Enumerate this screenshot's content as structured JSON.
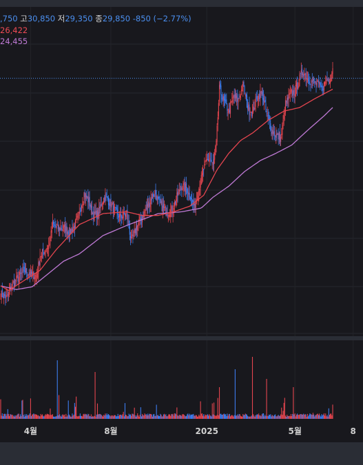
{
  "chart_data": {
    "type": "candlestick",
    "ohlc": {
      "open_fragment": ",750",
      "high_label": "고",
      "high": "30,850",
      "low_label": "저",
      "low": "29,350",
      "close_label": "종",
      "close": "29,850",
      "change": "-850",
      "change_pct": "(−2.77%)"
    },
    "ma_short_fragment": "26,422",
    "ma_long_fragment": "24,455",
    "x_ticks": [
      {
        "label": "4월",
        "bar": 38
      },
      {
        "label": "8월",
        "bar": 140
      },
      {
        "label": "2025",
        "bar": 262
      },
      {
        "label": "5월",
        "bar": 374
      },
      {
        "label": "8",
        "bar": 448
      }
    ],
    "ylim": [
      17500,
      35500
    ],
    "last_price_line": 31600,
    "close_path": [
      [
        0,
        19800
      ],
      [
        8,
        19600
      ],
      [
        14,
        20300
      ],
      [
        22,
        20700
      ],
      [
        30,
        21100
      ],
      [
        38,
        20900
      ],
      [
        46,
        20800
      ],
      [
        50,
        21900
      ],
      [
        56,
        22200
      ],
      [
        62,
        22500
      ],
      [
        66,
        23600
      ],
      [
        72,
        23400
      ],
      [
        80,
        23400
      ],
      [
        88,
        23200
      ],
      [
        94,
        23500
      ],
      [
        100,
        24200
      ],
      [
        106,
        25300
      ],
      [
        112,
        24900
      ],
      [
        118,
        24100
      ],
      [
        124,
        24200
      ],
      [
        130,
        25000
      ],
      [
        134,
        25100
      ],
      [
        140,
        24700
      ],
      [
        146,
        24300
      ],
      [
        152,
        24000
      ],
      [
        160,
        24200
      ],
      [
        166,
        22700
      ],
      [
        172,
        23400
      ],
      [
        178,
        23900
      ],
      [
        184,
        24400
      ],
      [
        190,
        24900
      ],
      [
        196,
        25400
      ],
      [
        200,
        24900
      ],
      [
        206,
        24500
      ],
      [
        212,
        24300
      ],
      [
        218,
        24400
      ],
      [
        224,
        25100
      ],
      [
        230,
        25700
      ],
      [
        236,
        25600
      ],
      [
        242,
        25100
      ],
      [
        246,
        24500
      ],
      [
        252,
        25600
      ],
      [
        258,
        26600
      ],
      [
        262,
        27100
      ],
      [
        266,
        27200
      ],
      [
        270,
        26800
      ],
      [
        274,
        28000
      ],
      [
        278,
        31000
      ],
      [
        284,
        30300
      ],
      [
        290,
        29800
      ],
      [
        296,
        30600
      ],
      [
        302,
        30400
      ],
      [
        308,
        31200
      ],
      [
        314,
        30000
      ],
      [
        320,
        29700
      ],
      [
        326,
        30600
      ],
      [
        332,
        30800
      ],
      [
        338,
        29700
      ],
      [
        344,
        28800
      ],
      [
        350,
        28500
      ],
      [
        356,
        28300
      ],
      [
        362,
        30200
      ],
      [
        368,
        30700
      ],
      [
        374,
        30900
      ],
      [
        380,
        31600
      ],
      [
        384,
        32000
      ],
      [
        390,
        31600
      ],
      [
        396,
        31400
      ],
      [
        402,
        31300
      ],
      [
        408,
        31000
      ],
      [
        414,
        31500
      ],
      [
        420,
        31700
      ],
      [
        422,
        32300
      ]
    ],
    "ma_short": [
      [
        0,
        20250
      ],
      [
        10,
        20000
      ],
      [
        30,
        20550
      ],
      [
        50,
        21100
      ],
      [
        70,
        22200
      ],
      [
        100,
        23600
      ],
      [
        130,
        24200
      ],
      [
        160,
        24300
      ],
      [
        180,
        24100
      ],
      [
        200,
        24100
      ],
      [
        220,
        24300
      ],
      [
        240,
        24600
      ],
      [
        258,
        25200
      ],
      [
        275,
        26600
      ],
      [
        290,
        27500
      ],
      [
        305,
        28200
      ],
      [
        320,
        28600
      ],
      [
        340,
        29300
      ],
      [
        360,
        29800
      ],
      [
        380,
        30000
      ],
      [
        400,
        30500
      ],
      [
        422,
        31000
      ]
    ],
    "ma_long": [
      [
        0,
        20250
      ],
      [
        20,
        20050
      ],
      [
        40,
        20200
      ],
      [
        60,
        20900
      ],
      [
        80,
        21600
      ],
      [
        100,
        22000
      ],
      [
        130,
        23000
      ],
      [
        160,
        23550
      ],
      [
        200,
        24200
      ],
      [
        230,
        24300
      ],
      [
        255,
        24500
      ],
      [
        270,
        25100
      ],
      [
        290,
        25700
      ],
      [
        310,
        26500
      ],
      [
        330,
        27100
      ],
      [
        350,
        27500
      ],
      [
        370,
        27950
      ],
      [
        390,
        28750
      ],
      [
        410,
        29500
      ],
      [
        422,
        30000
      ]
    ],
    "grid": true
  }
}
